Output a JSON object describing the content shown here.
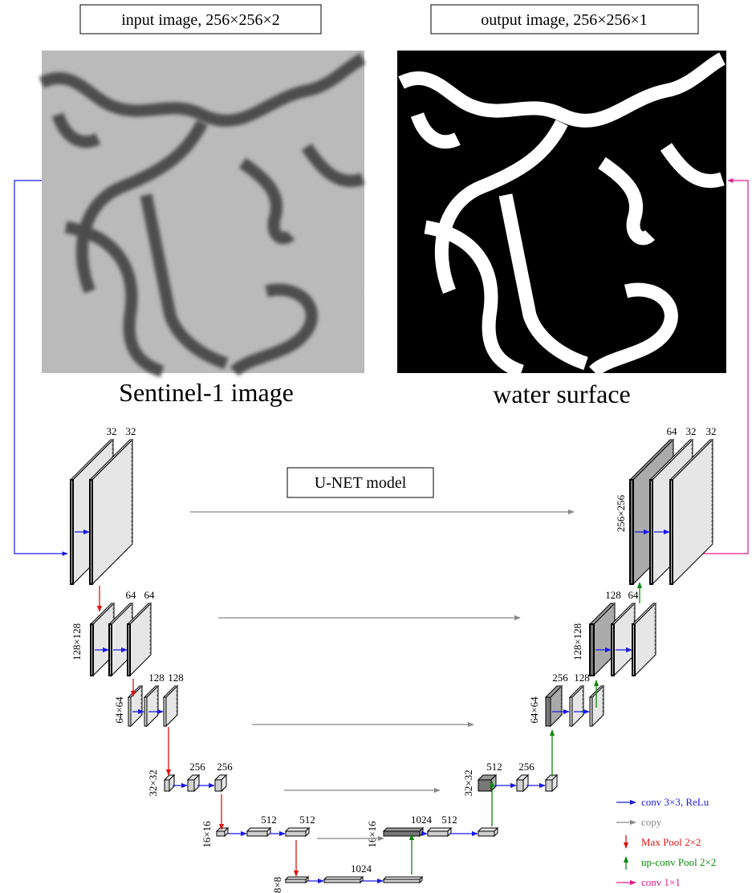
{
  "input_label": "input image, 256×256×2",
  "output_label": "output image, 256×256×1",
  "input_caption": "Sentinel-1 image",
  "output_caption": "water surface",
  "model_label": "U-NET model",
  "encoder": [
    {
      "channels": [
        "32",
        "32"
      ]
    },
    {
      "size": "128×128",
      "channels": [
        "64",
        "64"
      ]
    },
    {
      "size": "64×64",
      "channels": [
        "128",
        "128"
      ]
    },
    {
      "size": "32×32",
      "channels": [
        "256",
        "256"
      ]
    },
    {
      "size": "16×16",
      "channels": [
        "512",
        "512"
      ]
    },
    {
      "size": "8×8",
      "channels": [
        "1024"
      ]
    }
  ],
  "decoder": [
    {
      "size": "16×16",
      "channels": [
        "1024",
        "512"
      ]
    },
    {
      "size": "32×32",
      "channels": [
        "512",
        "256"
      ]
    },
    {
      "size": "64×64",
      "channels": [
        "256",
        "128"
      ]
    },
    {
      "size": "128×128",
      "channels": [
        "128",
        "64"
      ]
    },
    {
      "size": "256×256",
      "channels": [
        "64",
        "32",
        "32"
      ]
    }
  ],
  "legend": [
    "conv 3×3, ReLu",
    "copy",
    "Max Pool 2×2",
    "up-conv Pool 2×2",
    "conv 1×1"
  ]
}
